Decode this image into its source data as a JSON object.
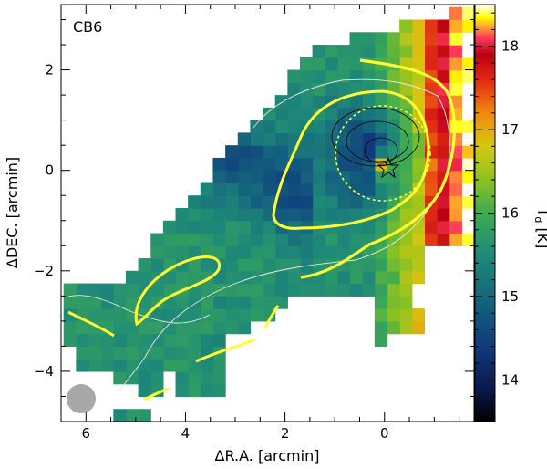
{
  "chart_data": {
    "type": "heatmap",
    "panel_label": "CB6",
    "xlabel": "ΔR.A. [arcmin]",
    "ylabel": "ΔDEC. [arcmin]",
    "colorbar_label": "T_d [K]",
    "xlim": [
      6.5,
      -1.8
    ],
    "ylim": [
      -5.0,
      3.3
    ],
    "x_ticks": [
      6,
      4,
      2,
      0
    ],
    "y_ticks": [
      2,
      0,
      -2,
      -4
    ],
    "colorbar_range": [
      13.5,
      18.5
    ],
    "colorbar_ticks": [
      14,
      15,
      16,
      17,
      18
    ],
    "colormap": [
      "#000000",
      "#0a1a4e",
      "#103c7c",
      "#13607e",
      "#1f8a78",
      "#3eaa52",
      "#8cc21f",
      "#d5c810",
      "#f08a10",
      "#e02a14",
      "#bb0012",
      "#ff3a5c",
      "#ffff00",
      "#ffffff"
    ],
    "contours": {
      "yellow_levels": "column density contours (yellow)",
      "white_levels": "thin white contours",
      "markers": [
        "star at core center"
      ]
    },
    "beam": {
      "x": 6.1,
      "y": -4.55,
      "color": "#a8a8a8"
    }
  }
}
